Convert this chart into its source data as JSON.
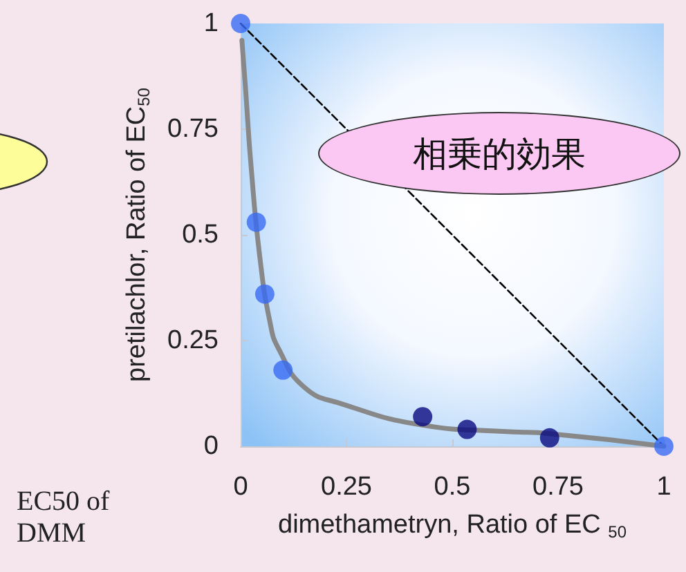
{
  "chart_data": {
    "type": "scatter",
    "xlabel": "dimethametryn, Ratio of EC $_{50}$",
    "ylabel": "pretilachlor, Ratio of EC$_{50}$",
    "xlim": [
      0,
      1
    ],
    "ylim": [
      0,
      1
    ],
    "xticks": [
      0,
      0.25,
      0.5,
      0.75,
      1
    ],
    "yticks": [
      0,
      0.25,
      0.5,
      0.75,
      1
    ],
    "grid": false,
    "marker": "circle",
    "annotations": [
      "相乗的効果",
      "EC50 of DMM"
    ],
    "series": [
      {
        "type": "line",
        "color": "#000000",
        "line_style": "dashed",
        "marker": "none",
        "x": [
          0,
          1
        ],
        "values": [
          1,
          0
        ]
      },
      {
        "type": "line",
        "color": "#888888",
        "line_style": "solid",
        "marker": "none",
        "x": [
          0.003,
          0.012,
          0.024,
          0.045,
          0.07,
          0.09,
          0.15,
          0.24,
          0.43,
          0.62,
          0.73,
          1
        ],
        "values": [
          0.96,
          0.84,
          0.67,
          0.45,
          0.29,
          0.23,
          0.14,
          0.1,
          0.05,
          0.035,
          0.03,
          0
        ]
      },
      {
        "color": "#3a6cf4",
        "x": [
          0,
          0.037,
          0.057,
          0.1,
          1
        ],
        "values": [
          1,
          0.53,
          0.36,
          0.18,
          0
        ]
      },
      {
        "color": "#0a0a80",
        "x": [
          0.43,
          0.535,
          0.73
        ],
        "values": [
          0.07,
          0.04,
          0.02
        ]
      }
    ]
  }
}
